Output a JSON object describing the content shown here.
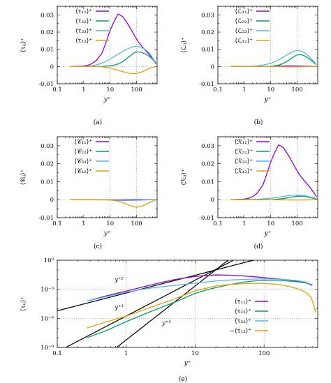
{
  "figure": {
    "background": "#ffffff"
  },
  "chart_data": [
    {
      "id": "a",
      "type": "line",
      "caption": "(a)",
      "xscale": "log",
      "xlim": [
        0.1,
        600
      ],
      "ylim": [
        -0.01,
        0.035
      ],
      "xticks": [
        "0.1",
        "1",
        "10",
        "100"
      ],
      "yticks": [
        "-0.01",
        "0",
        "0.01",
        "0.02",
        "0.03"
      ],
      "ytick_values": [
        -0.01,
        0,
        0.01,
        0.02,
        0.03
      ],
      "xlabel": "y⁺",
      "ylabel": "⟨τᵢⱼ⟩⁺",
      "grid": "dotted at x=10, x=100 and y=0",
      "legend": "top-left",
      "series": [
        {
          "name": "⟨τ₁₁⟩⁺",
          "color": "#9400d3",
          "x": [
            0.3,
            1,
            1.5,
            2,
            3,
            5,
            7,
            10,
            15,
            20,
            30,
            50,
            80,
            120,
            200,
            300,
            450,
            550
          ],
          "y": [
            0,
            0.0003,
            0.0008,
            0.0016,
            0.0035,
            0.008,
            0.014,
            0.021,
            0.027,
            0.0305,
            0.029,
            0.024,
            0.0185,
            0.014,
            0.01,
            0.007,
            0.0035,
            0.0015
          ]
        },
        {
          "name": "⟨τ₂₂⟩⁺",
          "color": "#009e73",
          "x": [
            0.3,
            2,
            5,
            10,
            15,
            20,
            30,
            50,
            80,
            100,
            150,
            200,
            300,
            450,
            550
          ],
          "y": [
            0,
            0,
            0.0001,
            0.0004,
            0.0009,
            0.0015,
            0.0028,
            0.0055,
            0.0078,
            0.0085,
            0.0083,
            0.0075,
            0.006,
            0.0035,
            0.002
          ]
        },
        {
          "name": "⟨τ₃₃⟩⁺",
          "color": "#56b4e9",
          "x": [
            0.3,
            1,
            2,
            3,
            5,
            7,
            10,
            15,
            20,
            30,
            50,
            80,
            100,
            150,
            200,
            300,
            450,
            550
          ],
          "y": [
            0,
            0.0001,
            0.0004,
            0.0009,
            0.002,
            0.003,
            0.0043,
            0.006,
            0.0072,
            0.0088,
            0.0105,
            0.0116,
            0.0117,
            0.0112,
            0.0102,
            0.008,
            0.004,
            0.002
          ]
        },
        {
          "name": "⟨τ₁₂⟩⁺",
          "color": "#e69f00",
          "x": [
            0.3,
            3,
            5,
            10,
            20,
            30,
            50,
            80,
            100,
            150,
            200,
            300,
            450,
            550
          ],
          "y": [
            0,
            0,
            -0.0002,
            -0.0008,
            -0.0022,
            -0.003,
            -0.0038,
            -0.0042,
            -0.004,
            -0.0033,
            -0.0025,
            -0.0012,
            -0.0003,
            0
          ]
        }
      ]
    },
    {
      "id": "b",
      "type": "line",
      "caption": "(b)",
      "xscale": "log",
      "xlim": [
        0.1,
        600
      ],
      "ylim": [
        -0.01,
        0.035
      ],
      "xticks": [
        "0.1",
        "1",
        "10",
        "100"
      ],
      "yticks": [
        "-0.01",
        "0",
        "0.01",
        "0.02",
        "0.03"
      ],
      "ytick_values": [
        -0.01,
        0,
        0.01,
        0.02,
        0.03
      ],
      "xlabel": "y⁺",
      "ylabel": "⟨ℒᵢⱼ⟩⁺",
      "grid": "dotted at x=10, x=100 and y=0",
      "legend": "top-left",
      "series": [
        {
          "name": "⟨ℒ₁₁⟩⁺",
          "color": "#9400d3",
          "x": [
            0.3,
            5,
            10,
            20,
            50,
            100,
            200,
            400,
            550
          ],
          "y": [
            0,
            0,
            0.0001,
            0.0003,
            0.0004,
            0.0003,
            0.0002,
            0.0001,
            0
          ]
        },
        {
          "name": "⟨ℒ₂₂⟩⁺",
          "color": "#009e73",
          "x": [
            0.3,
            5,
            10,
            20,
            30,
            50,
            80,
            100,
            150,
            200,
            300,
            450,
            550
          ],
          "y": [
            0,
            0,
            0.0001,
            0.0008,
            0.0018,
            0.0038,
            0.006,
            0.0068,
            0.0068,
            0.006,
            0.0042,
            0.002,
            0.001
          ]
        },
        {
          "name": "⟨ℒ₃₃⟩⁺",
          "color": "#56b4e9",
          "x": [
            0.3,
            1,
            2,
            3,
            5,
            10,
            20,
            30,
            50,
            80,
            100,
            150,
            200,
            300,
            450,
            550
          ],
          "y": [
            0,
            0,
            0.0002,
            0.0004,
            0.0008,
            0.0018,
            0.0038,
            0.0055,
            0.0075,
            0.009,
            0.0093,
            0.0088,
            0.0078,
            0.0055,
            0.0025,
            0.001
          ]
        },
        {
          "name": "⟨ℒ₁₂⟩⁺",
          "color": "#e69f00",
          "x": [
            0.3,
            10,
            50,
            100,
            200,
            550
          ],
          "y": [
            0,
            0,
            -0.0002,
            -0.0002,
            -0.0001,
            0
          ]
        }
      ]
    },
    {
      "id": "c",
      "type": "line",
      "caption": "(c)",
      "xscale": "log",
      "xlim": [
        0.1,
        600
      ],
      "ylim": [
        -0.01,
        0.035
      ],
      "xticks": [
        "0.1",
        "1",
        "10",
        "100"
      ],
      "yticks": [
        "-0.01",
        "0",
        "0.01",
        "0.02",
        "0.03"
      ],
      "ytick_values": [
        -0.01,
        0,
        0.01,
        0.02,
        0.03
      ],
      "xlabel": "y⁺",
      "ylabel": "⟨𝒞ᵢⱼ⟩⁺",
      "grid": "dotted at x=10, x=100 and y=0",
      "legend": "top-left",
      "series": [
        {
          "name": "⟨𝒞₁₁⟩⁺",
          "color": "#9400d3",
          "x": [
            0.3,
            10,
            30,
            100,
            550
          ],
          "y": [
            0,
            -0.0001,
            -0.0003,
            -0.0002,
            0
          ]
        },
        {
          "name": "⟨𝒞₂₂⟩⁺",
          "color": "#009e73",
          "x": [
            0.3,
            10,
            100,
            550
          ],
          "y": [
            0,
            0,
            0.0001,
            0
          ]
        },
        {
          "name": "⟨𝒞₃₃⟩⁺",
          "color": "#56b4e9",
          "x": [
            0.3,
            10,
            100,
            550
          ],
          "y": [
            0,
            0,
            0.0001,
            0
          ]
        },
        {
          "name": "⟨𝒞₁₂⟩⁺",
          "color": "#e69f00",
          "x": [
            0.3,
            5,
            10,
            20,
            30,
            50,
            80,
            100,
            150,
            200,
            300,
            450,
            550
          ],
          "y": [
            0,
            0,
            -0.0002,
            -0.0008,
            -0.0016,
            -0.003,
            -0.004,
            -0.0042,
            -0.0037,
            -0.003,
            -0.0017,
            -0.0005,
            0
          ]
        }
      ]
    },
    {
      "id": "d",
      "type": "line",
      "caption": "(d)",
      "xscale": "log",
      "xlim": [
        0.1,
        600
      ],
      "ylim": [
        -0.01,
        0.035
      ],
      "xticks": [
        "0.1",
        "1",
        "10",
        "100"
      ],
      "yticks": [
        "-0.01",
        "0",
        "0.01",
        "0.02",
        "0.03"
      ],
      "ytick_values": [
        -0.01,
        0,
        0.01,
        0.02,
        0.03
      ],
      "xlabel": "y⁺",
      "ylabel": "⟨ℛᵢⱼ⟩⁺",
      "grid": "dotted at x=10, x=100 and y=0",
      "legend": "top-left",
      "series": [
        {
          "name": "⟨ℛ₁₁⟩⁺",
          "color": "#9400d3",
          "x": [
            0.3,
            1,
            1.5,
            2,
            3,
            5,
            7,
            10,
            15,
            20,
            30,
            50,
            80,
            120,
            200,
            300,
            450,
            550
          ],
          "y": [
            0,
            0.0003,
            0.0008,
            0.0016,
            0.0035,
            0.008,
            0.014,
            0.021,
            0.027,
            0.0305,
            0.029,
            0.024,
            0.0185,
            0.014,
            0.01,
            0.007,
            0.0035,
            0.0015
          ]
        },
        {
          "name": "⟨ℛ₂₂⟩⁺",
          "color": "#009e73",
          "x": [
            0.3,
            10,
            30,
            50,
            100,
            150,
            200,
            300,
            550
          ],
          "y": [
            0,
            0,
            0.0006,
            0.0012,
            0.0019,
            0.002,
            0.0018,
            0.0012,
            0.0004
          ]
        },
        {
          "name": "⟨ℛ₃₃⟩⁺",
          "color": "#56b4e9",
          "x": [
            0.3,
            3,
            10,
            30,
            50,
            80,
            100,
            200,
            300,
            550
          ],
          "y": [
            0,
            0.0002,
            0.0008,
            0.0018,
            0.0023,
            0.0025,
            0.0025,
            0.0022,
            0.0016,
            0.0006
          ]
        },
        {
          "name": "⟨ℛ₁₂⟩⁺",
          "color": "#e69f00",
          "x": [
            0.3,
            10,
            100,
            550
          ],
          "y": [
            0,
            0,
            -0.0002,
            0
          ]
        }
      ]
    },
    {
      "id": "e",
      "type": "line",
      "caption": "(e)",
      "xscale": "log",
      "yscale": "log",
      "xlim": [
        0.1,
        600
      ],
      "ylim": [
        1e-09,
        1
      ],
      "xticks": [
        "0.1",
        "1",
        "10",
        "100"
      ],
      "yticks": [
        "10⁻⁹",
        "10⁻⁶",
        "10⁻³",
        "10⁰"
      ],
      "ytick_values": [
        1e-09,
        1e-06,
        0.001,
        1
      ],
      "xlabel": "y⁺",
      "ylabel": "⟨τᵢⱼ⟩⁺",
      "grid": "dotted at x=1, 10, 100 and y=1e-6, 1e-3",
      "legend": "lower-right",
      "annotations": [
        {
          "text": "y⁺²",
          "x": 0.68,
          "y": 0.0065
        },
        {
          "text": "y⁺³",
          "x": 0.68,
          "y": 9.5e-06
        },
        {
          "text": "y⁺⁴",
          "x": 3.3,
          "y": 2.2e-07
        }
      ],
      "reference_lines": [
        {
          "label": "y⁺²",
          "color": "#000000",
          "x": [
            0.1,
            70
          ],
          "y": [
            6e-06,
            1
          ]
        },
        {
          "label": "y⁺³",
          "color": "#000000",
          "x": [
            0.1,
            36
          ],
          "y": [
            3.5e-10,
            1
          ]
        },
        {
          "label": "y⁺⁴",
          "color": "#000000",
          "x": [
            0.37,
            30
          ],
          "y": [
            2.35e-11,
            1
          ]
        }
      ],
      "series": [
        {
          "name": "⟨τ₁₁⟩⁺",
          "color": "#9400d3",
          "x": [
            0.27,
            0.5,
            1,
            2,
            3,
            5,
            10,
            15,
            20,
            30,
            50,
            80,
            100,
            150,
            200,
            300,
            400,
            500
          ],
          "y": [
            6e-05,
            0.0002,
            0.00065,
            0.0022,
            0.0045,
            0.01,
            0.021,
            0.027,
            0.0305,
            0.029,
            0.024,
            0.0185,
            0.016,
            0.012,
            0.01,
            0.007,
            0.005,
            0.0025
          ]
        },
        {
          "name": "⟨τ₂₂⟩⁺",
          "color": "#009e73",
          "x": [
            0.27,
            0.5,
            1,
            2,
            3,
            5,
            10,
            15,
            20,
            30,
            50,
            80,
            100,
            150,
            200,
            300,
            400,
            500
          ],
          "y": [
            1e-08,
            5e-08,
            4.5e-07,
            3.5e-06,
            1.1e-05,
            4.5e-05,
            0.00038,
            0.0009,
            0.0015,
            0.0028,
            0.0055,
            0.0078,
            0.0085,
            0.0083,
            0.0075,
            0.006,
            0.0045,
            0.003
          ]
        },
        {
          "name": "⟨τ₃₃⟩⁺",
          "color": "#56b4e9",
          "x": [
            0.27,
            0.5,
            1,
            2,
            3,
            5,
            10,
            20,
            30,
            50,
            80,
            100,
            150,
            200,
            300,
            400,
            500
          ],
          "y": [
            6e-05,
            0.00017,
            0.0005,
            0.0012,
            0.0017,
            0.0025,
            0.0043,
            0.0072,
            0.0088,
            0.0105,
            0.0116,
            0.0117,
            0.0112,
            0.0102,
            0.008,
            0.0055,
            0.003
          ]
        },
        {
          "name": "−⟨τ₁₂⟩⁺",
          "color": "#e69f00",
          "x": [
            0.27,
            0.5,
            1,
            2,
            3,
            5,
            10,
            20,
            30,
            50,
            80,
            100,
            150,
            200,
            300,
            400,
            480,
            520,
            560
          ],
          "y": [
            1e-07,
            4e-07,
            1.7e-06,
            1e-05,
            2.8e-05,
            0.0001,
            0.0007,
            0.0022,
            0.003,
            0.0038,
            0.0042,
            0.004,
            0.0033,
            0.0025,
            0.0012,
            0.0005,
            0.00015,
            3e-05,
            4e-06
          ]
        }
      ]
    }
  ]
}
